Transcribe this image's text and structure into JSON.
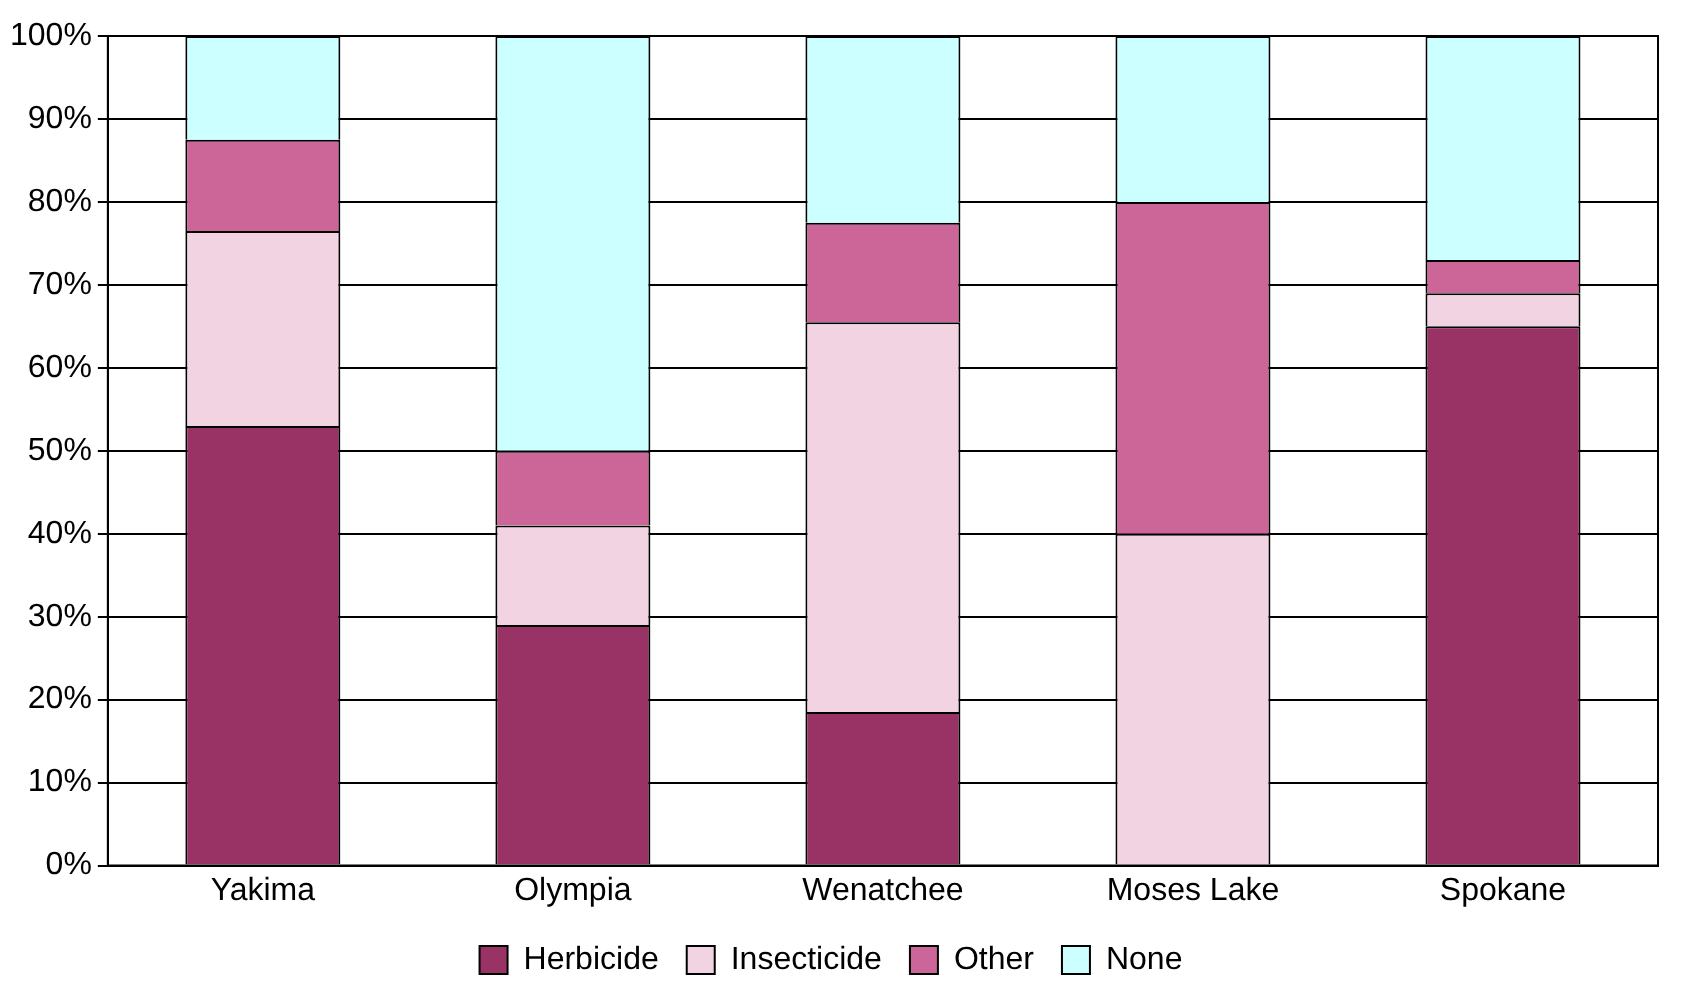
{
  "chart_data": {
    "type": "bar",
    "stacked": true,
    "categories": [
      "Yakima",
      "Olympia",
      "Wenatchee",
      "Moses Lake",
      "Spokane"
    ],
    "series": [
      {
        "name": "Herbicide",
        "color": "#993366",
        "values": [
          53,
          29,
          18.5,
          0,
          65
        ]
      },
      {
        "name": "Insecticide",
        "color": "#f2d3e2",
        "values": [
          23.5,
          12,
          47,
          40,
          4
        ]
      },
      {
        "name": "Other",
        "color": "#cc6699",
        "values": [
          11,
          9,
          12,
          40,
          4
        ]
      },
      {
        "name": "None",
        "color": "#ccffff",
        "values": [
          12.5,
          50,
          22.5,
          20,
          27
        ]
      }
    ],
    "ylim": [
      0,
      100
    ],
    "yticks": [
      {
        "value": 0,
        "label": "0%"
      },
      {
        "value": 10,
        "label": "10%"
      },
      {
        "value": 20,
        "label": "20%"
      },
      {
        "value": 30,
        "label": "30%"
      },
      {
        "value": 40,
        "label": "40%"
      },
      {
        "value": 50,
        "label": "50%"
      },
      {
        "value": 60,
        "label": "60%"
      },
      {
        "value": 70,
        "label": "70%"
      },
      {
        "value": 80,
        "label": "80%"
      },
      {
        "value": 90,
        "label": "90%"
      },
      {
        "value": 100,
        "label": "100%"
      }
    ],
    "grid": "y",
    "legend": "bottom"
  }
}
